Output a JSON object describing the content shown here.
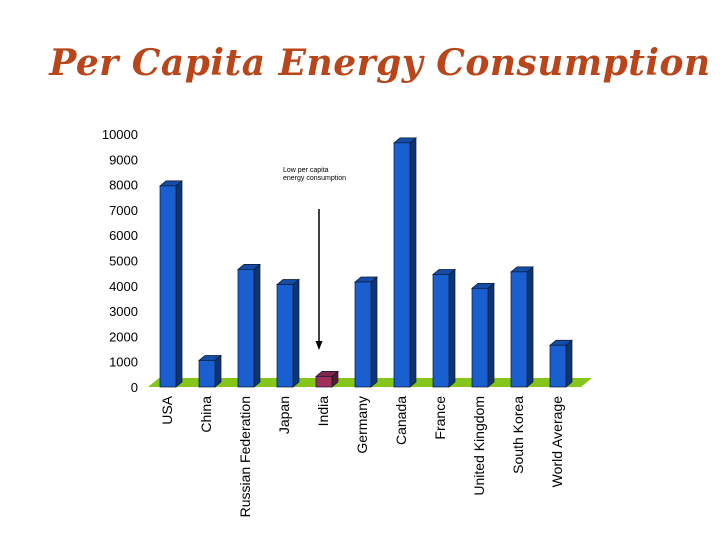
{
  "chart_data": {
    "type": "bar",
    "title": "Per Capita Energy Consumption",
    "categories": [
      "USA",
      "China",
      "Russian Federation",
      "Japan",
      "India",
      "Germany",
      "Canada",
      "France",
      "United Kingdom",
      "South Korea",
      "World Average"
    ],
    "values": [
      7950,
      1050,
      4650,
      4050,
      420,
      4150,
      9650,
      4450,
      3900,
      4550,
      1650
    ],
    "highlight_category": "India",
    "ylim": [
      0,
      10000
    ],
    "yticks": [
      0,
      1000,
      2000,
      3000,
      4000,
      5000,
      6000,
      7000,
      8000,
      9000,
      10000
    ],
    "xlabel": "",
    "ylabel": "",
    "grid": false,
    "annotation": {
      "lines": [
        "Low per capita",
        "energy consumption"
      ],
      "target": "India"
    },
    "colors": {
      "bar": "#1a5fd0",
      "highlight": "#a0305a",
      "floor": "#86c61a",
      "title": "#b8461a"
    }
  }
}
